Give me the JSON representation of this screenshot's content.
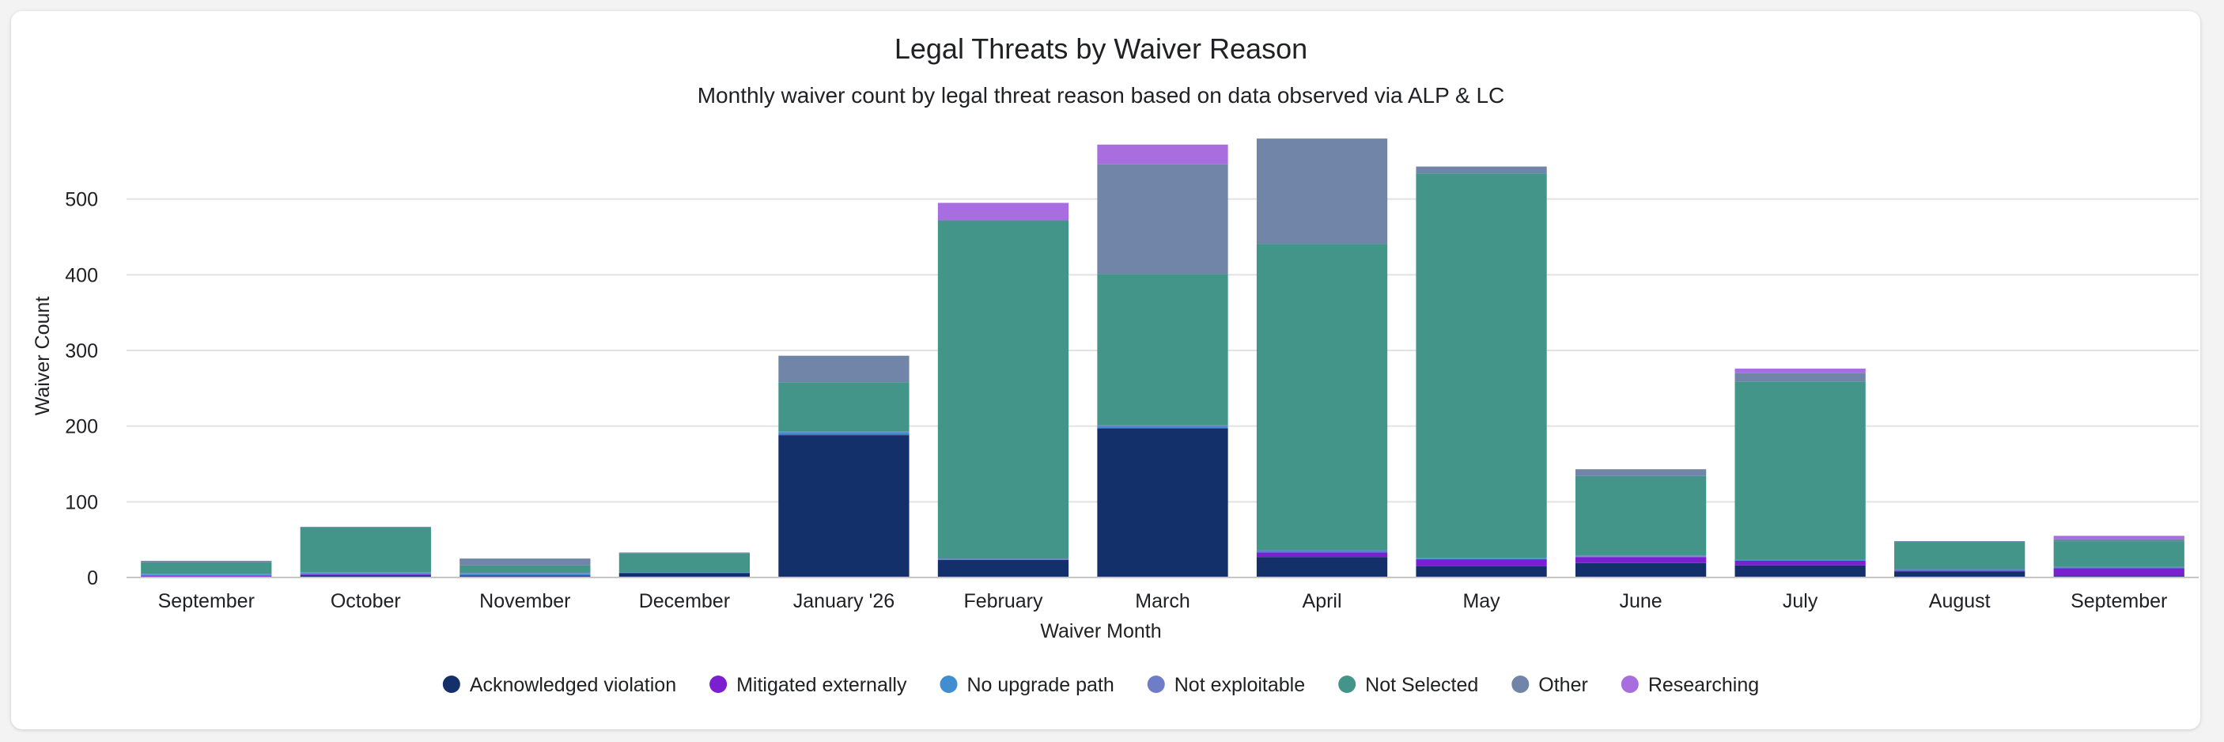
{
  "chart_data": {
    "type": "bar",
    "stacked": true,
    "title": "Legal Threats by Waiver Reason",
    "subtitle": "Monthly waiver count by legal threat reason based on data observed via ALP & LC",
    "xlabel": "Waiver Month",
    "ylabel": "Waiver Count",
    "ylim": [
      0,
      600
    ],
    "yticks": [
      0,
      100,
      200,
      300,
      400,
      500
    ],
    "grid": true,
    "legend": "bottom",
    "categories": [
      "September",
      "October",
      "November",
      "December",
      "January '26",
      "February",
      "March",
      "April",
      "May",
      "June",
      "July",
      "August",
      "September"
    ],
    "series": [
      {
        "name": "Acknowledged violation",
        "color": "#13306b",
        "values": [
          1,
          3,
          2,
          6,
          188,
          23,
          197,
          27,
          15,
          19,
          16,
          8,
          2
        ]
      },
      {
        "name": "Mitigated externally",
        "color": "#7b1fd1",
        "values": [
          1,
          1,
          1,
          0,
          1,
          0,
          0,
          6,
          9,
          8,
          6,
          1,
          10
        ]
      },
      {
        "name": "No upgrade path",
        "color": "#3f8ed1",
        "values": [
          2,
          2,
          2,
          1,
          3,
          1,
          3,
          2,
          1,
          1,
          1,
          1,
          1
        ]
      },
      {
        "name": "Not exploitable",
        "color": "#6e7dc6",
        "values": [
          1,
          1,
          1,
          0,
          1,
          1,
          1,
          1,
          1,
          1,
          1,
          1,
          1
        ]
      },
      {
        "name": "Not Selected",
        "color": "#43958a",
        "values": [
          15,
          59,
          10,
          25,
          65,
          447,
          200,
          405,
          508,
          105,
          235,
          36,
          34
        ]
      },
      {
        "name": "Other",
        "color": "#7185a8",
        "values": [
          2,
          1,
          9,
          1,
          35,
          0,
          145,
          139,
          9,
          9,
          11,
          1,
          3
        ]
      },
      {
        "name": "Researching",
        "color": "#a86ddf",
        "values": [
          0,
          0,
          0,
          0,
          0,
          23,
          26,
          0,
          0,
          0,
          6,
          0,
          4
        ]
      }
    ]
  }
}
